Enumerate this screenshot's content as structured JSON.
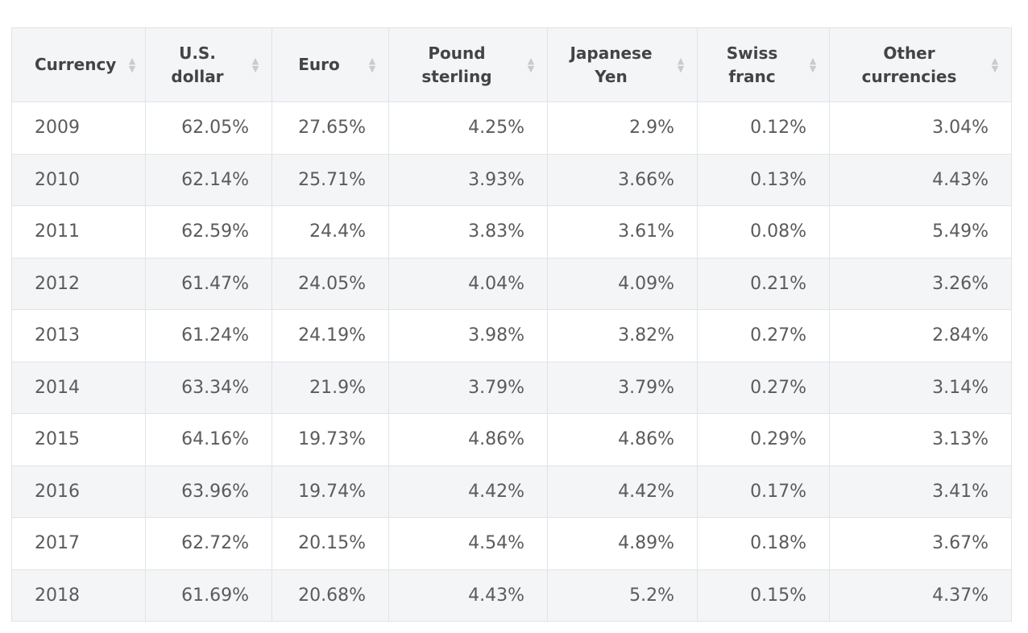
{
  "chart_data": {
    "type": "table",
    "columns": [
      "Currency",
      "U.S. dollar",
      "Euro",
      "Pound sterling",
      "Japanese Yen",
      "Swiss franc",
      "Other currencies"
    ],
    "rows": [
      [
        "2009",
        "62.05%",
        "27.65%",
        "4.25%",
        "2.9%",
        "0.12%",
        "3.04%"
      ],
      [
        "2010",
        "62.14%",
        "25.71%",
        "3.93%",
        "3.66%",
        "0.13%",
        "4.43%"
      ],
      [
        "2011",
        "62.59%",
        "24.4%",
        "3.83%",
        "3.61%",
        "0.08%",
        "5.49%"
      ],
      [
        "2012",
        "61.47%",
        "24.05%",
        "4.04%",
        "4.09%",
        "0.21%",
        "3.26%"
      ],
      [
        "2013",
        "61.24%",
        "24.19%",
        "3.98%",
        "3.82%",
        "0.27%",
        "2.84%"
      ],
      [
        "2014",
        "63.34%",
        "21.9%",
        "3.79%",
        "3.79%",
        "0.27%",
        "3.14%"
      ],
      [
        "2015",
        "64.16%",
        "19.73%",
        "4.86%",
        "4.86%",
        "0.29%",
        "3.13%"
      ],
      [
        "2016",
        "63.96%",
        "19.74%",
        "4.42%",
        "4.42%",
        "0.17%",
        "3.41%"
      ],
      [
        "2017",
        "62.72%",
        "20.15%",
        "4.54%",
        "4.89%",
        "0.18%",
        "3.67%"
      ],
      [
        "2018",
        "61.69%",
        "20.68%",
        "4.43%",
        "5.2%",
        "0.15%",
        "4.37%"
      ]
    ]
  },
  "icons": {
    "sort": "sort-arrows-icon"
  },
  "colors": {
    "header_bg": "#f4f5f7",
    "stripe_bg": "#f4f5f7",
    "border": "#e1e3e6",
    "sort_icon": "#c8ccd1"
  }
}
